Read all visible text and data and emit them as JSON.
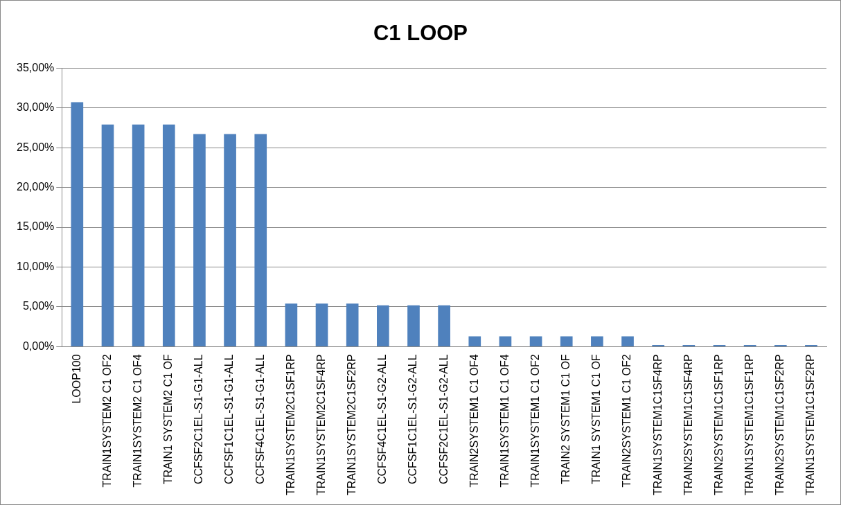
{
  "chart_data": {
    "type": "bar",
    "title": "C1 LOOP",
    "categories": [
      "LOOP100",
      "TRAIN1SYSTEM2 C1 OF2",
      "TRAIN1SYSTEM2 C1 OF4",
      "TRAIN1 SYSTEM2 C1 OF",
      "CCFSF2C1EL-S1-G1-ALL",
      "CCFSF1C1EL-S1-G1-ALL",
      "CCFSF4C1EL-S1-G1-ALL",
      "TRAIN1SYSTEM2C1SF1RP",
      "TRAIN1SYSTEM2C1SF4RP",
      "TRAIN1SYSTEM2C1SF2RP",
      "CCFSF4C1EL-S1-G2-ALL",
      "CCFSF1C1EL-S1-G2-ALL",
      "CCFSF2C1EL-S1-G2-ALL",
      "TRAIN2SYSTEM1 C1 OF4",
      "TRAIN1SYSTEM1 C1 OF4",
      "TRAIN1SYSTEM1 C1 OF2",
      "TRAIN2 SYSTEM1 C1 OF",
      "TRAIN1 SYSTEM1 C1 OF",
      "TRAIN2SYSTEM1 C1 OF2",
      "TRAIN1SYSTEM1C1SF4RP",
      "TRAIN2SYSTEM1C1SF4RP",
      "TRAIN2SYSTEM1C1SF1RP",
      "TRAIN1SYSTEM1C1SF1RP",
      "TRAIN2SYSTEM1C1SF2RP",
      "TRAIN1SYSTEM1C1SF2RP"
    ],
    "values": [
      30.7,
      27.9,
      27.9,
      27.9,
      26.7,
      26.7,
      26.7,
      5.4,
      5.4,
      5.4,
      5.2,
      5.2,
      5.2,
      1.3,
      1.3,
      1.3,
      1.3,
      1.3,
      1.3,
      0.2,
      0.2,
      0.2,
      0.2,
      0.2,
      0.2
    ],
    "color": "#4f81bd",
    "ylim": [
      0,
      35
    ],
    "yticks": [
      {
        "value": 0,
        "label": "0,00%"
      },
      {
        "value": 5,
        "label": "5,00%"
      },
      {
        "value": 10,
        "label": "10,00%"
      },
      {
        "value": 15,
        "label": "15,00%"
      },
      {
        "value": 20,
        "label": "20,00%"
      },
      {
        "value": 25,
        "label": "25,00%"
      },
      {
        "value": 30,
        "label": "30,00%"
      },
      {
        "value": 35,
        "label": "35,00%"
      }
    ],
    "grid": "y"
  }
}
